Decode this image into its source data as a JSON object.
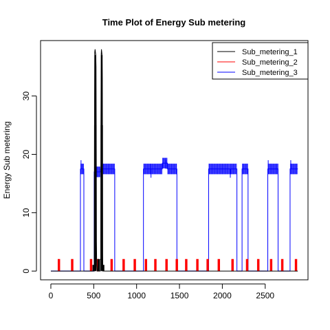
{
  "chart_data": {
    "type": "line",
    "title": "Time Plot of Energy Sub metering",
    "xlabel": "",
    "ylabel": "Energy Sub metering",
    "xlim": [
      -120,
      2999
    ],
    "ylim": [
      -1.5,
      39.5
    ],
    "xticks": [
      0,
      500,
      1000,
      1500,
      2000,
      2500
    ],
    "yticks": [
      0,
      10,
      20,
      30
    ],
    "legend_position": "top-right",
    "grid": false,
    "series": [
      {
        "name": "Sub_metering_1",
        "color": "#000000",
        "points": [
          [
            0,
            0
          ],
          [
            490,
            0
          ],
          [
            490,
            1
          ],
          [
            497,
            1
          ],
          [
            497,
            0
          ],
          [
            506,
            0
          ],
          [
            508,
            16
          ],
          [
            510,
            30
          ],
          [
            512,
            37.5
          ],
          [
            516,
            38
          ],
          [
            520,
            37.5
          ],
          [
            524,
            37
          ],
          [
            527,
            35
          ],
          [
            530,
            20
          ],
          [
            532,
            5
          ],
          [
            535,
            1
          ],
          [
            540,
            0
          ],
          [
            548,
            0
          ],
          [
            548,
            2
          ],
          [
            554,
            2
          ],
          [
            554,
            0
          ],
          [
            558,
            0
          ],
          [
            558,
            2
          ],
          [
            564,
            2
          ],
          [
            564,
            0
          ],
          [
            575,
            0
          ],
          [
            575,
            2
          ],
          [
            582,
            2
          ],
          [
            582,
            5
          ],
          [
            584,
            25
          ],
          [
            587,
            37
          ],
          [
            590,
            38
          ],
          [
            594,
            37.5
          ],
          [
            597,
            37
          ],
          [
            600,
            33
          ],
          [
            602,
            20
          ],
          [
            604,
            3
          ],
          [
            606,
            0
          ],
          [
            612,
            0
          ],
          [
            612,
            1
          ],
          [
            620,
            1
          ],
          [
            620,
            0
          ],
          [
            2880,
            0
          ]
        ]
      },
      {
        "name": "Sub_metering_2",
        "color": "#ff0000",
        "pulse_starts": [
          85,
          240,
          460,
          540,
          700,
          840,
          970,
          1100,
          1210,
          1340,
          1460,
          1570,
          1700,
          1820,
          1950,
          2110,
          2280,
          2410,
          2560,
          2690,
          2850
        ],
        "pulse_width": 18,
        "pulse_value": 2,
        "baseline": 0
      },
      {
        "name": "Sub_metering_3",
        "color": "#0000ff",
        "segments": [
          {
            "from": 0,
            "to": 345,
            "value": 0
          },
          {
            "from": 345,
            "to": 385,
            "value": 17.5
          },
          {
            "from": 385,
            "to": 505,
            "value": 0
          },
          {
            "from": 505,
            "to": 580,
            "value": 17
          },
          {
            "from": 580,
            "to": 745,
            "value": 17.5
          },
          {
            "from": 745,
            "to": 1080,
            "value": 0
          },
          {
            "from": 1080,
            "to": 1160,
            "value": 17.5
          },
          {
            "from": 1160,
            "to": 1300,
            "value": 17.5
          },
          {
            "from": 1300,
            "to": 1360,
            "value": 18.5
          },
          {
            "from": 1360,
            "to": 1470,
            "value": 17.5
          },
          {
            "from": 1470,
            "to": 1840,
            "value": 0
          },
          {
            "from": 1840,
            "to": 2080,
            "value": 17.5
          },
          {
            "from": 2080,
            "to": 2170,
            "value": 17.5
          },
          {
            "from": 2170,
            "to": 2230,
            "value": 0
          },
          {
            "from": 2230,
            "to": 2300,
            "value": 17.5
          },
          {
            "from": 2300,
            "to": 2530,
            "value": 0
          },
          {
            "from": 2530,
            "to": 2650,
            "value": 17.5
          },
          {
            "from": 2650,
            "to": 2790,
            "value": 0
          },
          {
            "from": 2790,
            "to": 2880,
            "value": 17.5
          }
        ],
        "peaks": [
          [
            352,
            19
          ],
          [
            1345,
            19
          ],
          [
            2535,
            19
          ],
          [
            2798,
            19
          ]
        ],
        "dips": [
          [
            512,
            16
          ],
          [
            1168,
            16
          ],
          [
            2093,
            16
          ]
        ]
      }
    ]
  }
}
